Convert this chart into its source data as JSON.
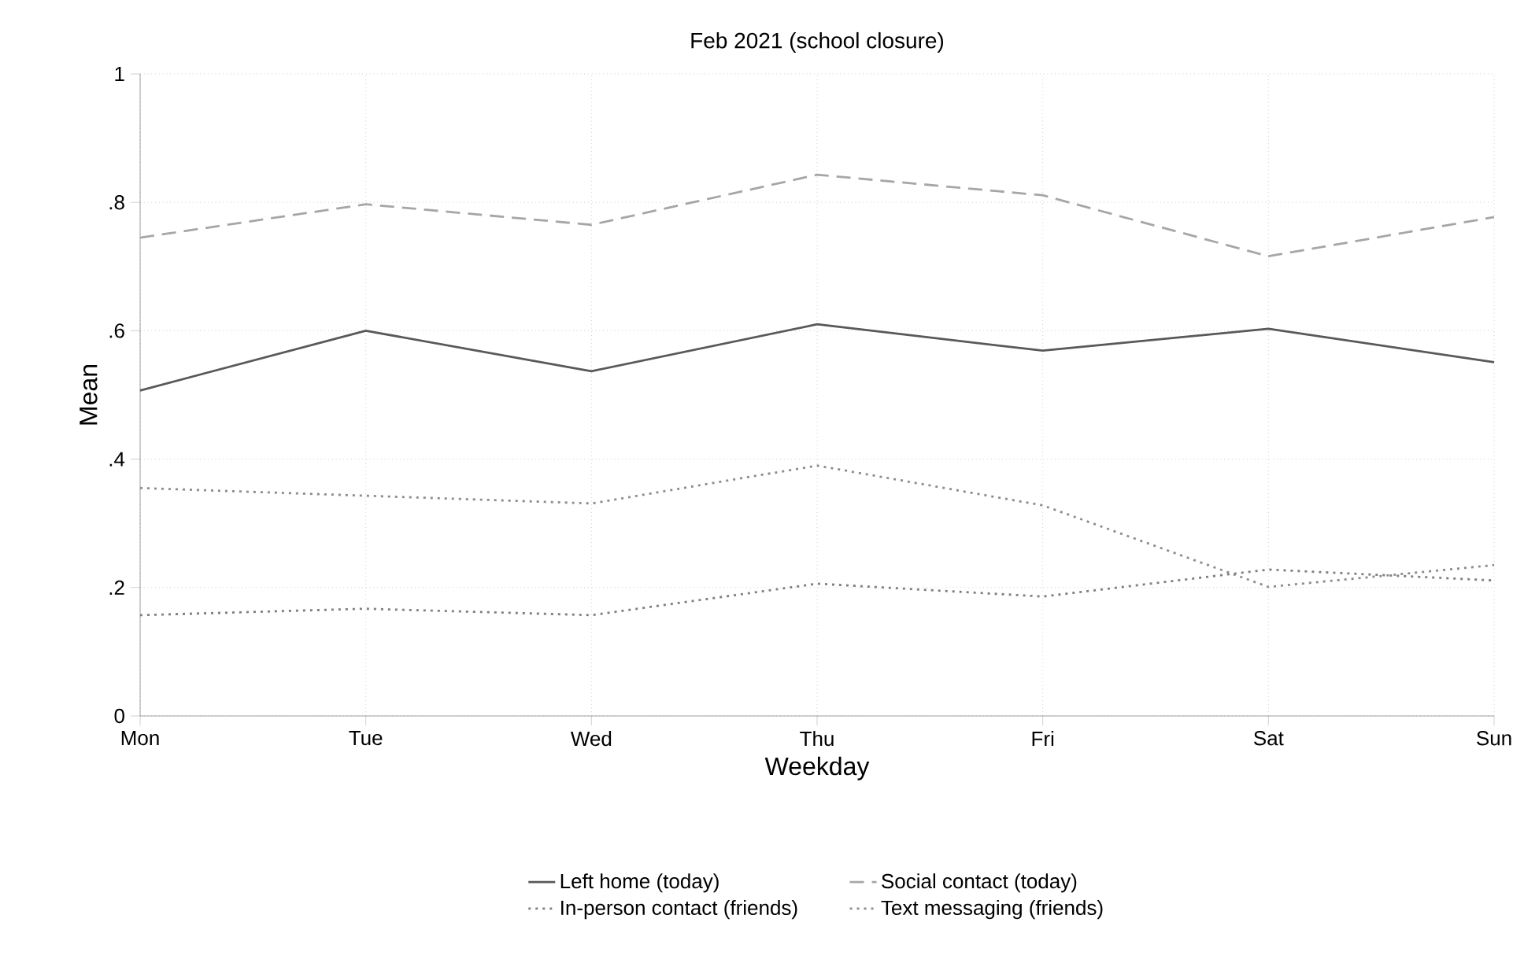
{
  "chart_data": {
    "type": "line",
    "title": "Feb 2021 (school closure)",
    "xlabel": "Weekday",
    "ylabel": "Mean",
    "categories": [
      "Mon",
      "Tue",
      "Wed",
      "Thu",
      "Fri",
      "Sat",
      "Sun"
    ],
    "ylim": [
      0,
      1
    ],
    "yticks": [
      0,
      {
        "value": 0.2,
        "label": ".2"
      },
      {
        "value": 0.4,
        "label": ".4"
      },
      {
        "value": 0.6,
        "label": ".6"
      },
      {
        "value": 0.8,
        "label": ".8"
      },
      1
    ],
    "grid": true,
    "legend": "bottom",
    "marker": "none",
    "series": [
      {
        "name": "Left home (today)",
        "color": "#595959",
        "line_style": "solid",
        "values": [
          0.507,
          0.6,
          0.537,
          0.61,
          0.569,
          0.603,
          0.551
        ]
      },
      {
        "name": "Social contact (today)",
        "color": "#a6a6a6",
        "line_style": "dashed",
        "values": [
          0.745,
          0.797,
          0.765,
          0.843,
          0.811,
          0.716,
          0.777
        ]
      },
      {
        "name": "In-person contact (friends)",
        "color": "#7f7f7f",
        "line_style": "dotted",
        "values": [
          0.157,
          0.167,
          0.157,
          0.206,
          0.186,
          0.228,
          0.211
        ]
      },
      {
        "name": "Text messaging (friends)",
        "color": "#8c8c8c",
        "line_style": "dotted",
        "values": [
          0.355,
          0.343,
          0.331,
          0.39,
          0.328,
          0.201,
          0.235
        ]
      }
    ]
  }
}
